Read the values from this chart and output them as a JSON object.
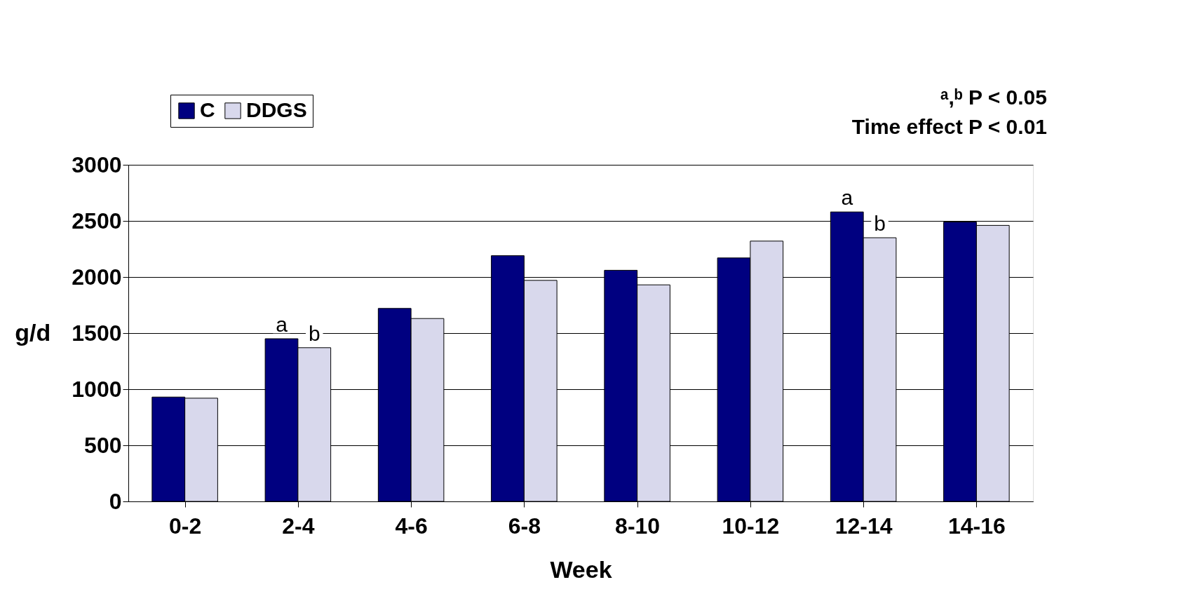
{
  "chart_data": {
    "type": "bar",
    "xlabel": "Week",
    "ylabel": "g/d",
    "categories": [
      "0-2",
      "2-4",
      "4-6",
      "6-8",
      "8-10",
      "10-12",
      "12-14",
      "14-16"
    ],
    "series": [
      {
        "name": "C",
        "color": "#000080",
        "values": [
          930,
          1450,
          1720,
          2190,
          2060,
          2170,
          2580,
          2490
        ]
      },
      {
        "name": "DDGS",
        "color": "#d8d8ec",
        "values": [
          920,
          1370,
          1630,
          1970,
          1930,
          2320,
          2350,
          2460
        ]
      }
    ],
    "ylim": [
      0,
      3000
    ],
    "yticks": [
      0,
      500,
      1000,
      1500,
      2000,
      2500,
      3000
    ],
    "grid": "y",
    "legend": "top left",
    "annotations": [
      {
        "text": "a",
        "x": "2-4",
        "y": 1450
      },
      {
        "text": "b",
        "x": "2-4",
        "y": 1370
      },
      {
        "text": "a",
        "x": "12-14",
        "y": 2580
      },
      {
        "text": "b",
        "x": "12-14",
        "y": 2350
      },
      "ᵃ,ᵇ P < 0.05",
      "Time effect P < 0.01"
    ]
  }
}
